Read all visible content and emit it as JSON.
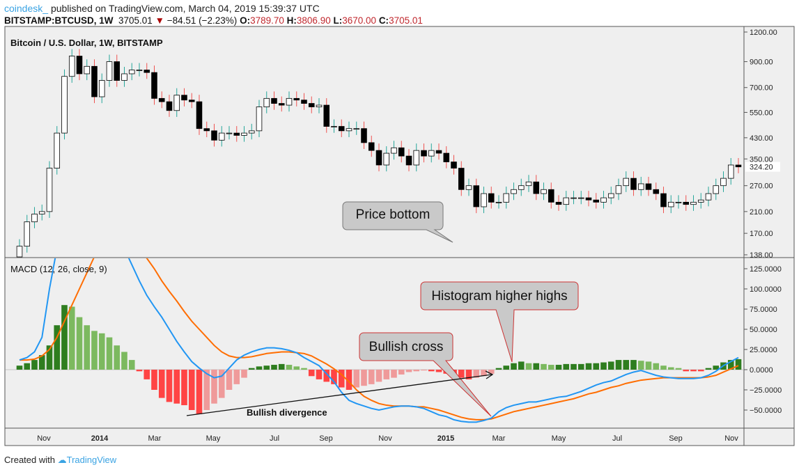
{
  "header": {
    "author": "coindesk_",
    "published": "published on TradingView.com, March 04, 2019 15:39:37 UTC",
    "symbol": "BITSTAMP:BTCUSD, 1W",
    "last": "3705.01",
    "change": "−84.51 (−2.23%)",
    "o_label": "O:",
    "o": "3789.70",
    "h_label": "H:",
    "h": "3806.90",
    "l_label": "L:",
    "l": "3670.00",
    "c_label": "C:",
    "c": "3705.01"
  },
  "footer": {
    "created": "Created with",
    "brand": "TradingView"
  },
  "chart_data": [
    {
      "type": "candlestick",
      "title": "Bitcoin / U.S. Dollar, 1W, BITSTAMP",
      "scale": "log",
      "ylim": [
        138,
        1200
      ],
      "yticks": [
        "1200.00",
        "900.00",
        "700.00",
        "550.00",
        "430.00",
        "350.00",
        "270.00",
        "210.00",
        "170.00",
        "138.00"
      ],
      "last_price_label": "324.20",
      "xticks": [
        "Nov",
        "2014",
        "Mar",
        "May",
        "Jul",
        "Sep",
        "Nov",
        "2015",
        "Mar",
        "May",
        "Jul",
        "Sep",
        "Nov"
      ],
      "closes": [
        150,
        190,
        205,
        210,
        320,
        450,
        780,
        950,
        800,
        860,
        640,
        750,
        900,
        750,
        800,
        830,
        830,
        810,
        630,
        610,
        560,
        650,
        620,
        610,
        470,
        460,
        420,
        450,
        450,
        440,
        450,
        460,
        580,
        630,
        600,
        590,
        630,
        620,
        600,
        580,
        590,
        480,
        480,
        460,
        470,
        470,
        410,
        380,
        330,
        370,
        390,
        360,
        330,
        380,
        360,
        380,
        370,
        340,
        320,
        260,
        270,
        220,
        250,
        230,
        230,
        250,
        260,
        270,
        280,
        250,
        260,
        230,
        225,
        240,
        240,
        240,
        235,
        230,
        240,
        250,
        270,
        290,
        260,
        275,
        260,
        250,
        220,
        230,
        230,
        225,
        230,
        235,
        250,
        270,
        290,
        330,
        324
      ],
      "colors": {
        "up_body": "#ffffff",
        "down_body": "#000000",
        "up_wick": "#26a69a",
        "down_wick": "#ef5350"
      },
      "annotations": {
        "price_bottom": "Price bottom"
      }
    },
    {
      "type": "macd",
      "title": "MACD (12, 26, close, 9)",
      "ylim": [
        -70,
        135
      ],
      "yticks": [
        "125.0000",
        "100.0000",
        "75.0000",
        "50.0000",
        "25.0000",
        "0.0000",
        "−25.0000",
        "−50.0000"
      ],
      "histogram": [
        5,
        8,
        12,
        18,
        30,
        55,
        80,
        78,
        65,
        55,
        48,
        45,
        40,
        30,
        22,
        12,
        -2,
        -12,
        -25,
        -35,
        -40,
        -42,
        -44,
        -50,
        -55,
        -50,
        -42,
        -35,
        -25,
        -18,
        -10,
        2,
        4,
        5,
        6,
        7,
        6,
        4,
        2,
        -8,
        -12,
        -15,
        -18,
        -22,
        -25,
        -22,
        -20,
        -18,
        -15,
        -12,
        -10,
        -6,
        -3,
        -2,
        -1,
        -2,
        -3,
        -5,
        -8,
        -10,
        -12,
        -10,
        -8,
        -5,
        2,
        5,
        8,
        10,
        8,
        8,
        7,
        6,
        6,
        7,
        7,
        7,
        8,
        8,
        9,
        10,
        12,
        12,
        12,
        11,
        10,
        8,
        5,
        3,
        2,
        -2,
        -2,
        -2,
        2,
        5,
        9,
        12,
        13
      ],
      "macd": [
        12,
        15,
        22,
        40,
        100,
        150,
        190,
        210,
        215,
        210,
        205,
        195,
        180,
        165,
        150,
        130,
        110,
        92,
        78,
        65,
        50,
        35,
        22,
        10,
        2,
        -5,
        -10,
        -8,
        2,
        12,
        18,
        22,
        25,
        27,
        27,
        26,
        24,
        21,
        15,
        10,
        5,
        -5,
        -15,
        -28,
        -38,
        -42,
        -45,
        -48,
        -50,
        -48,
        -46,
        -45,
        -45,
        -46,
        -48,
        -52,
        -56,
        -58,
        -62,
        -64,
        -65,
        -65,
        -63,
        -60,
        -52,
        -47,
        -44,
        -42,
        -40,
        -40,
        -38,
        -36,
        -34,
        -33,
        -30,
        -27,
        -23,
        -19,
        -16,
        -14,
        -10,
        -6,
        -3,
        -1,
        -4,
        -7,
        -9,
        -10,
        -11,
        -11,
        -11,
        -10,
        -7,
        -2,
        5,
        10,
        15
      ],
      "signal": [
        12,
        12,
        13,
        17,
        25,
        40,
        60,
        80,
        100,
        120,
        140,
        155,
        165,
        170,
        168,
        160,
        150,
        138,
        125,
        110,
        97,
        85,
        72,
        60,
        50,
        40,
        30,
        22,
        17,
        15,
        15,
        16,
        18,
        20,
        21,
        22,
        22,
        21,
        20,
        17,
        12,
        7,
        1,
        -6,
        -15,
        -25,
        -33,
        -38,
        -42,
        -44,
        -45,
        -45,
        -45,
        -46,
        -46,
        -48,
        -50,
        -53,
        -56,
        -59,
        -61,
        -62,
        -62,
        -61,
        -58,
        -55,
        -52,
        -50,
        -48,
        -46,
        -44,
        -42,
        -40,
        -38,
        -36,
        -33,
        -30,
        -28,
        -25,
        -22,
        -20,
        -17,
        -15,
        -13,
        -12,
        -11,
        -10,
        -10,
        -10,
        -10,
        -10,
        -10,
        -9,
        -7,
        -3,
        1,
        5
      ],
      "colors": {
        "macd": "#2196f3",
        "signal": "#ff6d00",
        "hist_up_strong": "#2e7d1f",
        "hist_up_weak": "#7cb95f",
        "hist_down_strong": "#ff4444",
        "hist_down_weak": "#ef9a9a"
      },
      "annotations": {
        "higher_highs": "Histogram higher highs",
        "bullish_cross": "Bullish cross",
        "divergence": "Bullish divergence"
      }
    }
  ]
}
